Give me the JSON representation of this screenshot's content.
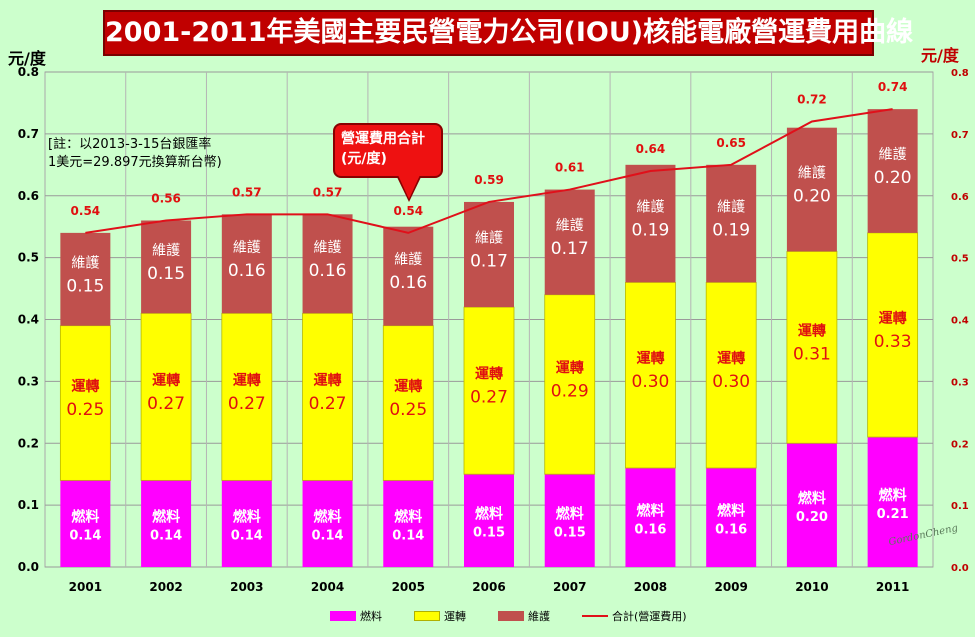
{
  "chart_data": {
    "type": "bar",
    "title": "2001-2011年美國主要民營電力公司(IOU)核能電廠營運費用曲線",
    "ylabel": "元/度",
    "ylabel_right": "元/度",
    "ylim": [
      0,
      0.8
    ],
    "y_ticks": [
      "0.0",
      "0.1",
      "0.2",
      "0.3",
      "0.4",
      "0.5",
      "0.6",
      "0.7",
      "0.8"
    ],
    "stacked": true,
    "grid": true,
    "legend_position": "bottom",
    "categories": [
      "2001",
      "2002",
      "2003",
      "2004",
      "2005",
      "2006",
      "2007",
      "2008",
      "2009",
      "2010",
      "2011"
    ],
    "series": [
      {
        "name": "燃料",
        "segment_label": "燃料",
        "color": "#ff00ff",
        "values": [
          0.14,
          0.14,
          0.14,
          0.14,
          0.14,
          0.15,
          0.15,
          0.16,
          0.16,
          0.2,
          0.21
        ]
      },
      {
        "name": "運轉",
        "segment_label": "運轉",
        "color": "#ffff00",
        "values": [
          0.25,
          0.27,
          0.27,
          0.27,
          0.25,
          0.27,
          0.29,
          0.3,
          0.3,
          0.31,
          0.33
        ]
      },
      {
        "name": "維護",
        "segment_label": "維護",
        "color": "#c0504d",
        "values": [
          0.15,
          0.15,
          0.16,
          0.16,
          0.16,
          0.17,
          0.17,
          0.19,
          0.19,
          0.2,
          0.2
        ]
      }
    ],
    "line_series": {
      "name": "合計(營運費用)",
      "color": "#e0101a",
      "values": [
        0.54,
        0.56,
        0.57,
        0.57,
        0.54,
        0.59,
        0.61,
        0.64,
        0.65,
        0.72,
        0.74
      ]
    },
    "annotations": {
      "note_line1": "[註：以2013-3-15台銀匯率",
      "note_line2": "1美元=29.897元換算新台幣)",
      "callout_line1": "營運費用合計",
      "callout_line2": "(元/度)"
    },
    "watermark": "GordonCheng"
  }
}
